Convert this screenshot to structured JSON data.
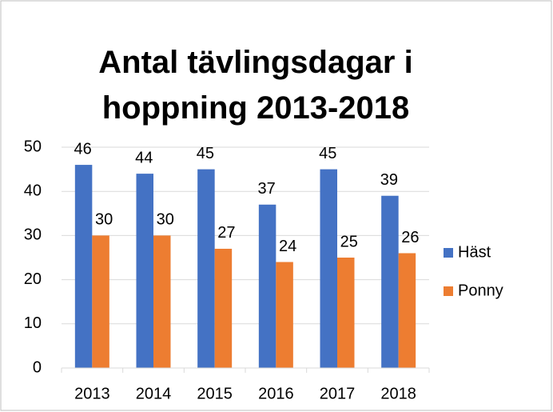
{
  "chart_data": {
    "type": "bar",
    "title": "Antal tävlingsdagar i hoppning 2013-2018",
    "categories": [
      "2013",
      "2014",
      "2015",
      "2016",
      "2017",
      "2018"
    ],
    "series": [
      {
        "name": "Häst",
        "color": "#4472c4",
        "values": [
          46,
          44,
          45,
          37,
          45,
          39
        ]
      },
      {
        "name": "Ponny",
        "color": "#ed7d31",
        "values": [
          30,
          30,
          27,
          24,
          25,
          26
        ]
      }
    ],
    "ylim": [
      0,
      50
    ],
    "yticks": [
      0,
      10,
      20,
      30,
      40,
      50
    ],
    "grid": true,
    "legend": "right"
  }
}
